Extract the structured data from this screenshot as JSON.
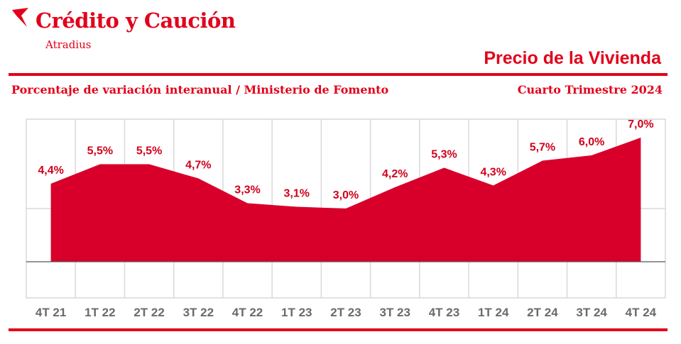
{
  "header": {
    "brand_name": "Crédito y Caución",
    "brand_sub": "Atradius",
    "title": "Precio de la Vivienda",
    "subtitle": "Porcentaje de variación interanual / Ministerio de Fomento",
    "period": "Cuarto Trimestre 2024"
  },
  "colors": {
    "accent": "#e2001a",
    "area": "#d8002a",
    "grid": "#d9d9d9",
    "tick": "#6a6a6a"
  },
  "chart_data": {
    "type": "area",
    "categories": [
      "4T 21",
      "1T 22",
      "2T 22",
      "3T 22",
      "4T 22",
      "1T 23",
      "2T 23",
      "3T 23",
      "4T 23",
      "1T 24",
      "2T 24",
      "3T 24",
      "4T 24"
    ],
    "values": [
      4.4,
      5.5,
      5.5,
      4.7,
      3.3,
      3.1,
      3.0,
      4.2,
      5.3,
      4.3,
      5.7,
      6.0,
      7.0
    ],
    "labels": [
      "4,4%",
      "5,5%",
      "5,5%",
      "4,7%",
      "3,3%",
      "3,1%",
      "3,0%",
      "4,2%",
      "5,3%",
      "4,3%",
      "5,7%",
      "6,0%",
      "7,0%"
    ],
    "grid": true,
    "legend": "none"
  }
}
